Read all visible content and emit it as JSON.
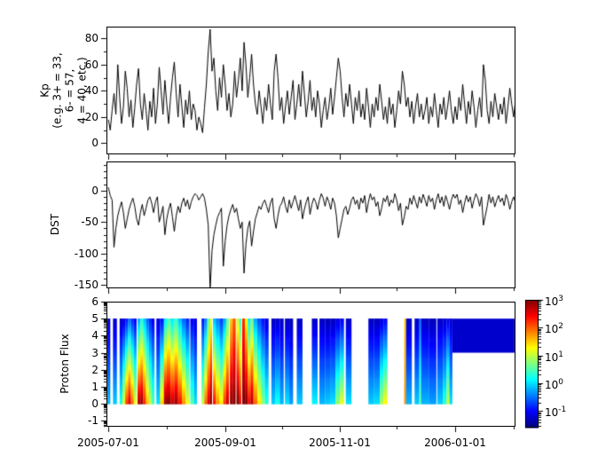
{
  "figure": {
    "background": "#ffffff",
    "frame_color": "#000000",
    "text_color": "#000000",
    "line_color": "#000000"
  },
  "x_axis": {
    "domain_days": [
      0,
      217
    ],
    "major_ticks": [
      {
        "day": 1,
        "label": "2005-07-01"
      },
      {
        "day": 63,
        "label": "2005-09-01"
      },
      {
        "day": 124,
        "label": "2005-11-01"
      },
      {
        "day": 185,
        "label": "2006-01-01"
      }
    ],
    "minor_tick_days": [
      32,
      93,
      154,
      216
    ]
  },
  "chart_data": [
    {
      "id": "kp",
      "type": "line",
      "ylabel": "Kp\n(e.g. 3+ = 33,\n6- = 57,\n4 = 40, etc.)",
      "ylim": [
        -8.5,
        89
      ],
      "yticks": [
        0,
        20,
        40,
        60,
        80
      ],
      "y_minor_step": 10,
      "x_start_day": 1,
      "x_step_days": 1,
      "values": [
        18,
        10,
        25,
        38,
        22,
        60,
        35,
        15,
        28,
        55,
        42,
        20,
        33,
        12,
        27,
        45,
        57,
        30,
        18,
        38,
        25,
        10,
        32,
        20,
        42,
        15,
        30,
        58,
        40,
        22,
        48,
        30,
        15,
        35,
        50,
        62,
        38,
        20,
        45,
        28,
        12,
        33,
        22,
        40,
        18,
        30,
        25,
        10,
        20,
        15,
        8,
        27,
        45,
        70,
        87,
        55,
        65,
        40,
        25,
        50,
        35,
        60,
        45,
        25,
        38,
        20,
        30,
        55,
        35,
        48,
        65,
        40,
        77,
        60,
        35,
        50,
        68,
        45,
        30,
        22,
        40,
        28,
        15,
        35,
        25,
        45,
        30,
        18,
        55,
        68,
        50,
        25,
        35,
        15,
        28,
        40,
        22,
        35,
        48,
        18,
        30,
        45,
        28,
        55,
        38,
        20,
        32,
        48,
        25,
        35,
        20,
        40,
        30,
        12,
        25,
        35,
        18,
        28,
        42,
        22,
        35,
        50,
        65,
        55,
        35,
        20,
        38,
        28,
        45,
        30,
        15,
        35,
        25,
        40,
        20,
        30,
        18,
        42,
        28,
        12,
        30,
        20,
        35,
        25,
        45,
        32,
        18,
        28,
        15,
        35,
        22,
        30,
        12,
        25,
        40,
        30,
        55,
        45,
        28,
        35,
        20,
        32,
        15,
        28,
        38,
        20,
        30,
        18,
        25,
        35,
        15,
        28,
        20,
        38,
        25,
        12,
        30,
        22,
        35,
        18,
        28,
        40,
        25,
        15,
        28,
        18,
        35,
        25,
        45,
        30,
        15,
        32,
        22,
        40,
        28,
        12,
        25,
        35,
        20,
        60,
        48,
        25,
        15,
        32,
        20,
        38,
        28,
        18,
        30,
        22,
        35,
        15,
        28,
        42,
        30,
        20,
        33
      ]
    },
    {
      "id": "dst",
      "type": "line",
      "ylabel": "DST",
      "ylim": [
        -155,
        46
      ],
      "yticks": [
        0,
        -50,
        -100,
        -150
      ],
      "y_minor_step": 10,
      "x_start_day": 1,
      "x_step_days": 1,
      "values": [
        5,
        -8,
        -15,
        -90,
        -60,
        -40,
        -28,
        -18,
        -35,
        -60,
        -45,
        -30,
        -20,
        -12,
        -25,
        -45,
        -55,
        -35,
        -22,
        -40,
        -28,
        -15,
        -10,
        -20,
        -35,
        -18,
        -10,
        -50,
        -38,
        -25,
        -70,
        -45,
        -30,
        -20,
        -42,
        -65,
        -40,
        -25,
        -35,
        -20,
        -12,
        -25,
        -15,
        -30,
        -18,
        -10,
        -5,
        -8,
        -15,
        -10,
        -5,
        -12,
        -30,
        -55,
        -158,
        -95,
        -70,
        -55,
        -42,
        -35,
        -28,
        -120,
        -80,
        -55,
        -40,
        -30,
        -22,
        -35,
        -28,
        -45,
        -60,
        -50,
        -131,
        -85,
        -60,
        -48,
        -88,
        -65,
        -45,
        -35,
        -25,
        -30,
        -20,
        -15,
        -25,
        -35,
        -20,
        -12,
        -45,
        -60,
        -40,
        -25,
        -20,
        -10,
        -25,
        -35,
        -15,
        -28,
        -18,
        -8,
        -20,
        -32,
        -15,
        -45,
        -30,
        -18,
        -10,
        -38,
        -22,
        -12,
        -18,
        -30,
        -15,
        -5,
        -12,
        -25,
        -10,
        -18,
        -30,
        -12,
        -20,
        -40,
        -75,
        -60,
        -45,
        -30,
        -25,
        -38,
        -28,
        -15,
        -10,
        -22,
        -15,
        -30,
        -12,
        -20,
        -8,
        -35,
        -18,
        -5,
        -15,
        -10,
        -25,
        -18,
        -40,
        -28,
        -12,
        -18,
        -8,
        -25,
        -15,
        -20,
        -5,
        -15,
        -32,
        -20,
        -55,
        -42,
        -25,
        -30,
        -12,
        -22,
        -8,
        -18,
        -28,
        -10,
        -20,
        -6,
        -15,
        -25,
        -8,
        -18,
        -12,
        -30,
        -15,
        -5,
        -20,
        -10,
        -25,
        -8,
        -18,
        -30,
        -15,
        -6,
        -12,
        -6,
        -22,
        -15,
        -35,
        -20,
        -8,
        -18,
        -10,
        -28,
        -15,
        -5,
        -12,
        -25,
        -10,
        -55,
        -40,
        -25,
        -6,
        -20,
        -10,
        -26,
        -16,
        -8,
        -18,
        -12,
        -24,
        -6,
        -15,
        -30,
        -18,
        -10,
        -20
      ]
    },
    {
      "id": "proton_flux",
      "type": "heatmap",
      "ylabel": "Proton Flux",
      "ylim": [
        -1.35,
        6
      ],
      "yticks": [
        6,
        5,
        4,
        3,
        2,
        1,
        0,
        -1
      ],
      "y_minor": "log",
      "colormap": "jet",
      "clim_log10": [
        -1.6,
        3
      ],
      "column_y_range": [
        0,
        5
      ],
      "columns": [
        [
          -1,
          3,
          -0.2,
          -1.3
        ],
        [
          3.5,
          2,
          -0.1,
          -1.3
        ],
        [
          7,
          1.5,
          0.2,
          -1.3
        ],
        [
          8.5,
          1.5,
          1.2,
          -1.2
        ],
        [
          10,
          1.5,
          2.2,
          -1.0
        ],
        [
          11.5,
          1.5,
          2.6,
          -0.6
        ],
        [
          13,
          1.5,
          2.0,
          -0.9
        ],
        [
          14.5,
          1.5,
          1.2,
          -1.1
        ],
        [
          16.5,
          1.5,
          2.8,
          -0.3
        ],
        [
          18,
          1.5,
          2.9,
          0.2
        ],
        [
          19.5,
          1.5,
          2.3,
          -0.2
        ],
        [
          21,
          1.5,
          1.6,
          -0.6
        ],
        [
          22.5,
          1.5,
          1.0,
          -0.9
        ],
        [
          24,
          1.5,
          0.5,
          -1.1
        ],
        [
          26.5,
          2,
          0.0,
          -1.2
        ],
        [
          28.5,
          2,
          1.5,
          -1.0
        ],
        [
          30.5,
          1.5,
          2.9,
          0.0
        ],
        [
          32,
          2,
          3.0,
          0.4
        ],
        [
          34,
          2,
          2.7,
          0.0
        ],
        [
          36,
          2,
          2.9,
          0.3
        ],
        [
          38,
          2,
          2.4,
          -0.2
        ],
        [
          40,
          2,
          1.8,
          -0.6
        ],
        [
          42,
          2,
          1.2,
          -0.9
        ],
        [
          44.5,
          2,
          0.5,
          -1.1
        ],
        [
          46.5,
          1.5,
          0.0,
          -1.2
        ],
        [
          50.5,
          1.5,
          1.0,
          -1.0
        ],
        [
          52,
          1.5,
          2.0,
          -0.5
        ],
        [
          53.5,
          1.5,
          2.6,
          0.5
        ],
        [
          55,
          1,
          3.0,
          1.2
        ],
        [
          56.5,
          1.5,
          2.4,
          -0.2
        ],
        [
          58,
          2,
          1.8,
          -0.5
        ],
        [
          60,
          2,
          1.4,
          -0.8
        ],
        [
          62,
          1.5,
          2.2,
          -0.3
        ],
        [
          63.5,
          1.5,
          2.7,
          0.5
        ],
        [
          65.5,
          1.5,
          2.9,
          1.5
        ],
        [
          67,
          1.5,
          3.0,
          2.0
        ],
        [
          69,
          1.5,
          3.0,
          1.0
        ],
        [
          70.5,
          1,
          2.5,
          0.3
        ],
        [
          72,
          1.5,
          3.0,
          2.2
        ],
        [
          73.5,
          1.5,
          3.0,
          1.2
        ],
        [
          75,
          1.5,
          2.5,
          0.0
        ],
        [
          76.5,
          1.5,
          2.8,
          0.6
        ],
        [
          78,
          2,
          2.0,
          -0.3
        ],
        [
          80,
          2,
          1.4,
          -0.7
        ],
        [
          82,
          2,
          0.8,
          -1.0
        ],
        [
          84,
          2,
          0.3,
          -1.2
        ],
        [
          87.5,
          2,
          -0.1,
          -1.3
        ],
        [
          89.5,
          2.5,
          0.2,
          -1.25
        ],
        [
          92,
          2,
          -0.2,
          -1.3
        ],
        [
          94.7,
          2.3,
          0.0,
          -1.3
        ],
        [
          97,
          2,
          -0.3,
          -1.35
        ],
        [
          101,
          3,
          -0.1,
          -1.3
        ],
        [
          109,
          3,
          0.1,
          -1.3
        ],
        [
          113,
          3,
          -0.2,
          -1.3
        ],
        [
          116,
          3,
          -0.1,
          -1.35
        ],
        [
          119,
          2.5,
          0.0,
          -1.3
        ],
        [
          121.5,
          2.5,
          0.8,
          -1.2
        ],
        [
          124,
          2,
          1.2,
          -1.1
        ],
        [
          127,
          3,
          0.0,
          -1.3
        ],
        [
          139,
          3,
          -0.1,
          -1.3
        ],
        [
          142,
          3,
          0.0,
          -1.35
        ],
        [
          145,
          2,
          0.9,
          -1.2
        ],
        [
          147,
          2,
          1.3,
          -1.1
        ],
        [
          158,
          1,
          1.8,
          1.5
        ],
        [
          159,
          3,
          -0.2,
          -1.3
        ],
        [
          163.5,
          2.5,
          -0.1,
          -1.3
        ],
        [
          166,
          1,
          0.6,
          -0.6
        ],
        [
          167,
          4,
          -0.2,
          -1.3
        ],
        [
          171,
          4,
          -0.3,
          -1.35
        ],
        [
          175.5,
          3,
          -0.1,
          -1.3
        ],
        [
          178.5,
          2,
          0.3,
          -1.25
        ],
        [
          180.5,
          1.5,
          1.1,
          -1.15
        ],
        [
          182,
          1.5,
          0.0,
          -1.3
        ]
      ],
      "partial_block": {
        "day_start": 183.5,
        "day_end": 217,
        "y_range": [
          3,
          5
        ],
        "value": -1.25
      }
    }
  ],
  "colorbar": {
    "scale": "log",
    "colormap": "jet",
    "range_log10": [
      -1.6,
      3
    ],
    "tick_base": "10",
    "tick_exponents": [
      "3",
      "2",
      "1",
      "0",
      "-1"
    ],
    "tick_exponent_values": [
      3,
      2,
      1,
      0,
      -1
    ]
  }
}
